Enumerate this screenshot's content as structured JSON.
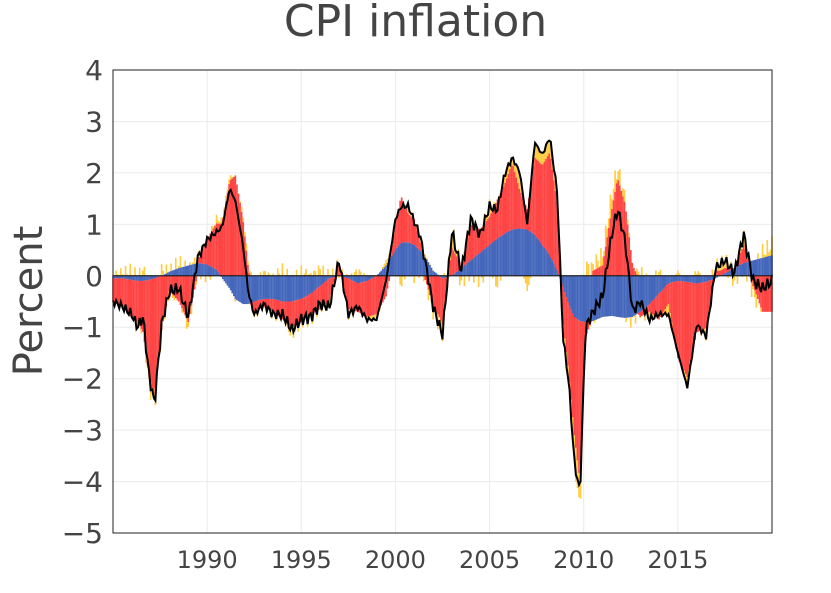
{
  "chart_data": {
    "type": "bar",
    "title": "CPI inflation",
    "xlabel": "",
    "ylabel": "Percent",
    "xlim": [
      1985.0,
      2020.0
    ],
    "ylim": [
      -5,
      4
    ],
    "x_ticks": [
      1990,
      1995,
      2000,
      2005,
      2010,
      2015
    ],
    "x_tick_labels": [
      "1990",
      "1995",
      "2000",
      "2005",
      "2010",
      "2015"
    ],
    "y_ticks": [
      -5,
      -4,
      -3,
      -2,
      -1,
      0,
      1,
      2,
      3,
      4
    ],
    "y_tick_labels": [
      "−5",
      "−4",
      "−3",
      "−2",
      "−1",
      "0",
      "1",
      "2",
      "3",
      "4"
    ],
    "grid": true,
    "stacked": true,
    "colors": {
      "trend": "#4466bb",
      "cycle": "#ff4444",
      "noise": "#ffcc44",
      "total": "#000000"
    },
    "anchors": {
      "x": [
        1985.0,
        1985.5,
        1986.0,
        1986.3,
        1986.6,
        1986.9,
        1987.2,
        1987.6,
        1988.0,
        1988.5,
        1989.0,
        1989.5,
        1990.0,
        1990.5,
        1990.8,
        1991.2,
        1991.5,
        1991.9,
        1992.2,
        1992.5,
        1993.0,
        1993.5,
        1994.0,
        1994.5,
        1995.0,
        1995.5,
        1996.0,
        1996.5,
        1997.0,
        1997.5,
        1998.0,
        1998.5,
        1999.0,
        1999.5,
        2000.0,
        2000.3,
        2000.7,
        2001.0,
        2001.3,
        2001.7,
        2002.0,
        2002.5,
        2003.0,
        2003.5,
        2004.0,
        2004.5,
        2005.0,
        2005.4,
        2005.8,
        2006.2,
        2006.6,
        2007.0,
        2007.4,
        2007.8,
        2008.2,
        2008.6,
        2008.9,
        2009.2,
        2009.5,
        2009.8,
        2010.1,
        2010.5,
        2011.0,
        2011.5,
        2011.8,
        2012.2,
        2012.6,
        2013.0,
        2013.5,
        2014.0,
        2014.5,
        2015.0,
        2015.5,
        2016.0,
        2016.5,
        2017.0,
        2017.5,
        2018.0,
        2018.5,
        2019.0,
        2019.5,
        2020.0
      ],
      "trend": [
        -0.05,
        -0.05,
        -0.08,
        -0.1,
        -0.1,
        -0.08,
        -0.05,
        0.0,
        0.08,
        0.15,
        0.2,
        0.25,
        0.22,
        0.12,
        -0.05,
        -0.25,
        -0.45,
        -0.55,
        -0.55,
        -0.5,
        -0.45,
        -0.45,
        -0.5,
        -0.5,
        -0.45,
        -0.35,
        -0.2,
        -0.05,
        0.0,
        -0.05,
        -0.15,
        -0.1,
        0.0,
        0.2,
        0.5,
        0.65,
        0.65,
        0.6,
        0.5,
        0.3,
        0.1,
        -0.05,
        0.0,
        0.15,
        0.3,
        0.45,
        0.6,
        0.72,
        0.82,
        0.9,
        0.92,
        0.9,
        0.8,
        0.6,
        0.4,
        0.1,
        -0.2,
        -0.55,
        -0.8,
        -0.88,
        -0.9,
        -0.88,
        -0.8,
        -0.78,
        -0.8,
        -0.82,
        -0.8,
        -0.7,
        -0.55,
        -0.35,
        -0.15,
        -0.1,
        -0.12,
        -0.15,
        -0.12,
        -0.05,
        0.05,
        0.15,
        0.25,
        0.3,
        0.35,
        0.4
      ],
      "cycle": [
        -0.45,
        -0.55,
        -0.75,
        -0.8,
        -1.0,
        -1.85,
        -2.3,
        -1.0,
        -0.3,
        -0.5,
        -0.9,
        0.05,
        0.5,
        0.9,
        1.05,
        1.85,
        1.95,
        1.1,
        0.1,
        -0.2,
        -0.15,
        -0.25,
        -0.35,
        -0.5,
        -0.45,
        -0.4,
        -0.45,
        -0.45,
        0.25,
        -0.6,
        -0.55,
        -0.7,
        -0.75,
        -0.4,
        0.5,
        0.9,
        0.55,
        0.5,
        0.2,
        -0.2,
        -0.6,
        -0.9,
        0.55,
        0.05,
        0.7,
        0.45,
        0.55,
        0.75,
        0.95,
        1.3,
        0.75,
        0.4,
        1.5,
        1.55,
        2.0,
        1.3,
        -0.7,
        -1.3,
        -2.3,
        -3.1,
        -0.3,
        0.1,
        0.2,
        1.3,
        1.9,
        1.4,
        0.2,
        -0.1,
        -0.15,
        -0.5,
        -0.4,
        -1.5,
        -1.85,
        -0.95,
        -0.9,
        0.1,
        0.1,
        0.0,
        0.35,
        -0.2,
        -0.7,
        -0.7
      ],
      "noise": [
        0.0,
        0.05,
        0.1,
        -0.05,
        0.1,
        -0.15,
        -0.2,
        0.1,
        -0.05,
        0.1,
        -0.1,
        0.1,
        -0.05,
        0.1,
        0.05,
        0.1,
        -0.05,
        0.1,
        0.1,
        -0.1,
        0.05,
        -0.05,
        0.1,
        -0.15,
        0.05,
        -0.05,
        0.1,
        -0.05,
        0.05,
        -0.1,
        0.1,
        -0.05,
        -0.1,
        0.1,
        0.1,
        -0.2,
        0.15,
        -0.05,
        0.1,
        -0.05,
        -0.1,
        -0.2,
        0.3,
        -0.1,
        0.1,
        -0.1,
        0.2,
        -0.2,
        0.2,
        0.1,
        0.35,
        -0.3,
        0.3,
        0.2,
        0.3,
        0.2,
        -0.3,
        -0.2,
        -0.5,
        -0.6,
        0.2,
        0.1,
        0.2,
        0.3,
        0.2,
        0.1,
        -0.1,
        0.1,
        -0.15,
        0.1,
        -0.2,
        0.1,
        -0.2,
        0.1,
        -0.15,
        0.1,
        0.15,
        -0.1,
        0.2,
        -0.2,
        0.1,
        0.2
      ],
      "total": [
        -0.5,
        -0.6,
        -0.75,
        -1.0,
        -0.8,
        -1.9,
        -2.5,
        -0.9,
        -0.3,
        -0.25,
        -0.8,
        0.35,
        0.7,
        0.85,
        0.95,
        1.7,
        1.45,
        0.6,
        -0.35,
        -0.75,
        -0.55,
        -0.75,
        -0.75,
        -1.05,
        -0.85,
        -0.8,
        -0.55,
        -0.6,
        0.3,
        -0.75,
        -0.6,
        -0.85,
        -0.85,
        -0.1,
        1.1,
        1.35,
        1.35,
        1.05,
        0.8,
        0.05,
        -0.6,
        -1.15,
        0.85,
        0.1,
        1.1,
        0.8,
        1.35,
        1.27,
        1.97,
        2.3,
        2.02,
        1.0,
        2.6,
        2.35,
        2.7,
        1.6,
        -1.2,
        -2.05,
        -3.6,
        -4.25,
        -1.0,
        -0.7,
        -0.4,
        0.82,
        1.3,
        0.68,
        -0.7,
        -0.5,
        -0.85,
        -0.75,
        -0.75,
        -1.5,
        -2.17,
        -0.95,
        -1.17,
        0.15,
        0.3,
        0.05,
        0.8,
        -0.1,
        -0.25,
        -0.1
      ]
    }
  }
}
